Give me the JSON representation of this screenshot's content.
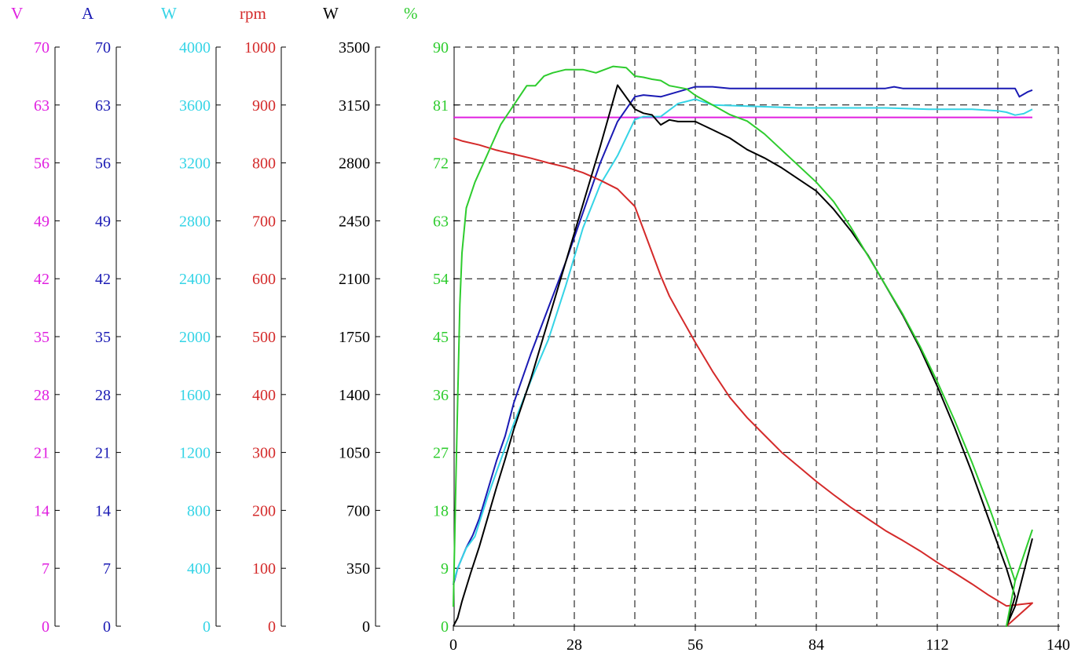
{
  "chart_data": {
    "type": "line",
    "x_axis": {
      "ticks": [
        "0",
        "28",
        "56",
        "84",
        "112",
        "140"
      ],
      "range": [
        0,
        140
      ]
    },
    "y_axes": [
      {
        "id": "volt",
        "unit": "V",
        "color": "#e020e0",
        "range": [
          0,
          70
        ],
        "ticks": [
          "0",
          "7",
          "14",
          "21",
          "28",
          "35",
          "42",
          "49",
          "56",
          "63",
          "70"
        ]
      },
      {
        "id": "amp",
        "unit": "A",
        "color": "#1a1ab4",
        "range": [
          0,
          70
        ],
        "ticks": [
          "0",
          "7",
          "14",
          "21",
          "28",
          "35",
          "42",
          "49",
          "56",
          "63",
          "70"
        ]
      },
      {
        "id": "win",
        "unit": "W",
        "color": "#35d4e6",
        "range": [
          0,
          4000
        ],
        "ticks": [
          "0",
          "400",
          "800",
          "1200",
          "1600",
          "2000",
          "2400",
          "2800",
          "3200",
          "3600",
          "4000"
        ]
      },
      {
        "id": "rpm",
        "unit": "rpm",
        "color": "#d42a2a",
        "range": [
          0,
          1000
        ],
        "ticks": [
          "0",
          "100",
          "200",
          "300",
          "400",
          "500",
          "600",
          "700",
          "800",
          "900",
          "1000"
        ]
      },
      {
        "id": "wout",
        "unit": "W",
        "color": "#000000",
        "range": [
          0,
          3500
        ],
        "ticks": [
          "0",
          "350",
          "700",
          "1050",
          "1400",
          "1750",
          "2100",
          "2450",
          "2800",
          "3150",
          "3500"
        ]
      },
      {
        "id": "eff",
        "unit": "%",
        "color": "#2ecc2e",
        "range": [
          0,
          90
        ],
        "ticks": [
          "0",
          "9",
          "18",
          "27",
          "36",
          "45",
          "54",
          "63",
          "72",
          "81",
          "90"
        ]
      }
    ],
    "grid": true,
    "series": [
      {
        "axis": "volt",
        "color": "#e020e0",
        "points": [
          [
            0,
            61.5
          ],
          [
            134,
            61.5
          ]
        ]
      },
      {
        "axis": "amp",
        "color": "#1a1ab4",
        "points": [
          [
            0,
            5
          ],
          [
            1,
            7
          ],
          [
            3,
            9.5
          ],
          [
            4.5,
            11
          ],
          [
            6,
            13
          ],
          [
            8,
            16.5
          ],
          [
            10,
            20
          ],
          [
            12,
            23
          ],
          [
            14,
            27
          ],
          [
            18,
            33
          ],
          [
            22,
            38.5
          ],
          [
            26,
            44
          ],
          [
            30,
            50
          ],
          [
            34,
            56
          ],
          [
            38,
            61
          ],
          [
            42,
            64
          ],
          [
            44,
            64.2
          ],
          [
            48,
            64
          ],
          [
            52,
            64.6
          ],
          [
            56,
            65.2
          ],
          [
            60,
            65.2
          ],
          [
            64,
            65
          ],
          [
            70,
            65
          ],
          [
            80,
            65
          ],
          [
            90,
            65
          ],
          [
            100,
            65
          ],
          [
            102,
            65.2
          ],
          [
            104,
            65
          ],
          [
            110,
            65
          ],
          [
            120,
            65
          ],
          [
            126,
            65
          ],
          [
            130,
            65
          ],
          [
            131,
            64
          ],
          [
            133,
            64.6
          ],
          [
            134,
            64.8
          ]
        ]
      },
      {
        "axis": "win",
        "color": "#35d4e6",
        "points": [
          [
            0,
            300
          ],
          [
            1,
            400
          ],
          [
            3,
            540
          ],
          [
            5,
            620
          ],
          [
            8,
            900
          ],
          [
            11,
            1150
          ],
          [
            14,
            1400
          ],
          [
            18,
            1700
          ],
          [
            22,
            1980
          ],
          [
            26,
            2350
          ],
          [
            30,
            2750
          ],
          [
            34,
            3050
          ],
          [
            38,
            3250
          ],
          [
            42,
            3500
          ],
          [
            44,
            3520
          ],
          [
            48,
            3520
          ],
          [
            52,
            3610
          ],
          [
            56,
            3640
          ],
          [
            60,
            3600
          ],
          [
            70,
            3590
          ],
          [
            80,
            3580
          ],
          [
            90,
            3580
          ],
          [
            100,
            3580
          ],
          [
            110,
            3570
          ],
          [
            120,
            3570
          ],
          [
            126,
            3560
          ],
          [
            128,
            3550
          ],
          [
            130,
            3530
          ],
          [
            132,
            3540
          ],
          [
            134,
            3570
          ]
        ]
      },
      {
        "axis": "rpm",
        "color": "#d42a2a",
        "points": [
          [
            0,
            843
          ],
          [
            2,
            838
          ],
          [
            6,
            831
          ],
          [
            10,
            822
          ],
          [
            14,
            815
          ],
          [
            18,
            808
          ],
          [
            22,
            800
          ],
          [
            26,
            793
          ],
          [
            30,
            783
          ],
          [
            34,
            770
          ],
          [
            38,
            755
          ],
          [
            40,
            740
          ],
          [
            42,
            725
          ],
          [
            44,
            685
          ],
          [
            46,
            645
          ],
          [
            48,
            605
          ],
          [
            50,
            570
          ],
          [
            52,
            543
          ],
          [
            56,
            490
          ],
          [
            60,
            440
          ],
          [
            64,
            395
          ],
          [
            68,
            360
          ],
          [
            72,
            330
          ],
          [
            76,
            300
          ],
          [
            80,
            275
          ],
          [
            84,
            250
          ],
          [
            88,
            227
          ],
          [
            92,
            205
          ],
          [
            96,
            185
          ],
          [
            100,
            165
          ],
          [
            104,
            148
          ],
          [
            108,
            130
          ],
          [
            112,
            110
          ],
          [
            116,
            92
          ],
          [
            120,
            73
          ],
          [
            124,
            53
          ],
          [
            128,
            35
          ],
          [
            134,
            40
          ],
          [
            128,
            0
          ]
        ]
      },
      {
        "axis": "wout",
        "color": "#000000",
        "points": [
          [
            0,
            0
          ],
          [
            1,
            50
          ],
          [
            2,
            150
          ],
          [
            4,
            320
          ],
          [
            6,
            480
          ],
          [
            8,
            660
          ],
          [
            10,
            840
          ],
          [
            12,
            1010
          ],
          [
            14,
            1190
          ],
          [
            18,
            1500
          ],
          [
            22,
            1850
          ],
          [
            26,
            2200
          ],
          [
            30,
            2550
          ],
          [
            34,
            2900
          ],
          [
            38,
            3270
          ],
          [
            42,
            3125
          ],
          [
            44,
            3100
          ],
          [
            46,
            3090
          ],
          [
            48,
            3030
          ],
          [
            50,
            3060
          ],
          [
            52,
            3050
          ],
          [
            56,
            3050
          ],
          [
            60,
            3000
          ],
          [
            64,
            2950
          ],
          [
            68,
            2880
          ],
          [
            72,
            2830
          ],
          [
            76,
            2770
          ],
          [
            80,
            2700
          ],
          [
            84,
            2630
          ],
          [
            88,
            2520
          ],
          [
            92,
            2390
          ],
          [
            96,
            2240
          ],
          [
            100,
            2060
          ],
          [
            104,
            1880
          ],
          [
            108,
            1680
          ],
          [
            112,
            1450
          ],
          [
            116,
            1200
          ],
          [
            120,
            930
          ],
          [
            124,
            640
          ],
          [
            128,
            350
          ],
          [
            130,
            180
          ],
          [
            128,
            0
          ],
          [
            130,
            120
          ],
          [
            134,
            530
          ]
        ]
      },
      {
        "axis": "eff",
        "color": "#2ecc2e",
        "points": [
          [
            0,
            3
          ],
          [
            0.5,
            20
          ],
          [
            1,
            35
          ],
          [
            1.5,
            50
          ],
          [
            2,
            58
          ],
          [
            3,
            65
          ],
          [
            5,
            69
          ],
          [
            7,
            72
          ],
          [
            9,
            75
          ],
          [
            11,
            78
          ],
          [
            13,
            80
          ],
          [
            15,
            82
          ],
          [
            17,
            84
          ],
          [
            19,
            84
          ],
          [
            21,
            85.5
          ],
          [
            23,
            86
          ],
          [
            26,
            86.5
          ],
          [
            28,
            86.5
          ],
          [
            30,
            86.5
          ],
          [
            33,
            86
          ],
          [
            35,
            86.5
          ],
          [
            37,
            87
          ],
          [
            40,
            86.8
          ],
          [
            42,
            85.5
          ],
          [
            44,
            85.3
          ],
          [
            46,
            85
          ],
          [
            48,
            84.8
          ],
          [
            50,
            84
          ],
          [
            54,
            83.5
          ],
          [
            56,
            82.5
          ],
          [
            60,
            81
          ],
          [
            64,
            79.5
          ],
          [
            68,
            78.5
          ],
          [
            72,
            76.5
          ],
          [
            76,
            74
          ],
          [
            80,
            71.5
          ],
          [
            84,
            69
          ],
          [
            88,
            66
          ],
          [
            92,
            62
          ],
          [
            96,
            57.5
          ],
          [
            100,
            53
          ],
          [
            104,
            48.5
          ],
          [
            108,
            43.5
          ],
          [
            112,
            38
          ],
          [
            116,
            32
          ],
          [
            120,
            25.5
          ],
          [
            124,
            18.5
          ],
          [
            128,
            11
          ],
          [
            130,
            7
          ],
          [
            128,
            0
          ],
          [
            130,
            7
          ],
          [
            134,
            15
          ]
        ]
      }
    ]
  }
}
